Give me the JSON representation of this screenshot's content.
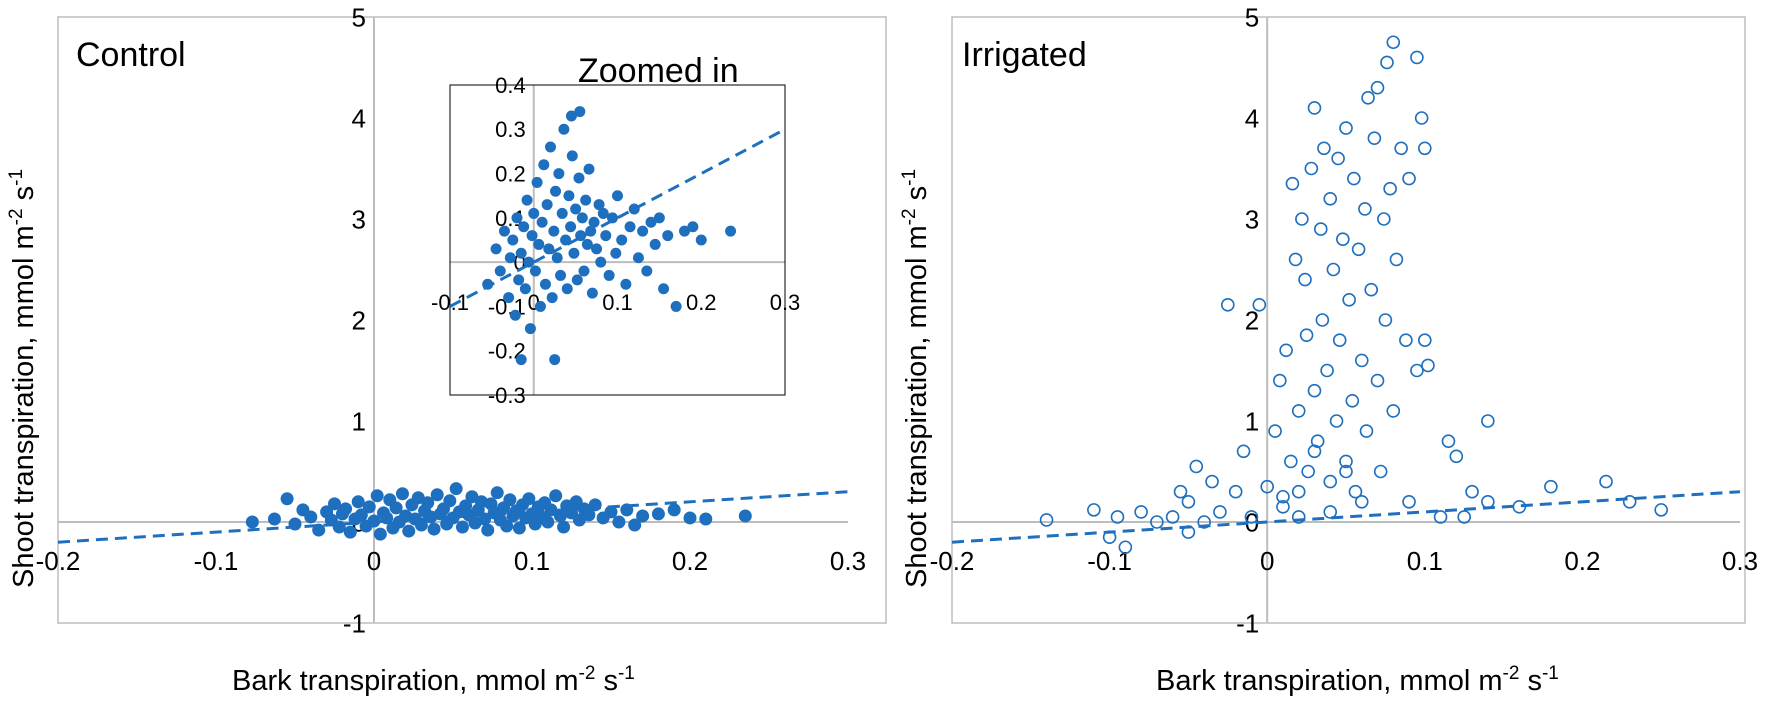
{
  "figure": {
    "panels": [
      "Control",
      "Irrigated"
    ]
  },
  "chart_data": [
    {
      "type": "scatter",
      "panel": "Control",
      "title": "Control",
      "xlabel": "Bark transpiration, mmol m",
      "xlabel_sup1": "-2",
      "xlabel_mid": " s",
      "xlabel_sup2": "-1",
      "ylabel": "Shoot transpiration, mmol m",
      "ylabel_sup1": "-2",
      "ylabel_mid": " s",
      "ylabel_sup2": "-1",
      "xlim": [
        -0.2,
        0.3
      ],
      "ylim": [
        -1,
        5
      ],
      "xticks": [
        -0.2,
        -0.1,
        0,
        0.1,
        0.2,
        0.3
      ],
      "xtick_labels": [
        "-0.2",
        "-0.1",
        "0",
        "0.1",
        "0.2",
        "0.3"
      ],
      "yticks": [
        -1,
        0,
        1,
        2,
        3,
        4,
        5
      ],
      "ytick_labels": [
        "-1",
        "0",
        "1",
        "2",
        "3",
        "4",
        "5"
      ],
      "marker": "filled-circle",
      "color": "#1f6fbf",
      "trendline": {
        "x": [
          -0.2,
          0.3
        ],
        "y": [
          -0.2,
          0.3
        ],
        "style": "dashed"
      },
      "points": [
        [
          -0.077,
          0.0
        ],
        [
          -0.063,
          0.03
        ],
        [
          -0.055,
          0.23
        ],
        [
          -0.05,
          -0.02
        ],
        [
          -0.045,
          0.12
        ],
        [
          -0.04,
          0.05
        ],
        [
          -0.035,
          -0.08
        ],
        [
          -0.03,
          0.1
        ],
        [
          -0.027,
          0.02
        ],
        [
          -0.025,
          0.18
        ],
        [
          -0.022,
          -0.05
        ],
        [
          -0.02,
          0.08
        ],
        [
          -0.018,
          0.13
        ],
        [
          -0.015,
          -0.1
        ],
        [
          -0.012,
          0.03
        ],
        [
          -0.01,
          0.2
        ],
        [
          -0.008,
          0.07
        ],
        [
          -0.005,
          -0.04
        ],
        [
          -0.003,
          0.15
        ],
        [
          0.0,
          0.01
        ],
        [
          0.002,
          0.26
        ],
        [
          0.004,
          -0.12
        ],
        [
          0.006,
          0.09
        ],
        [
          0.008,
          0.04
        ],
        [
          0.01,
          0.22
        ],
        [
          0.012,
          -0.06
        ],
        [
          0.014,
          0.14
        ],
        [
          0.016,
          0.0
        ],
        [
          0.018,
          0.28
        ],
        [
          0.02,
          0.06
        ],
        [
          0.022,
          -0.09
        ],
        [
          0.024,
          0.17
        ],
        [
          0.026,
          0.03
        ],
        [
          0.028,
          0.24
        ],
        [
          0.03,
          -0.03
        ],
        [
          0.032,
          0.11
        ],
        [
          0.034,
          0.19
        ],
        [
          0.036,
          0.05
        ],
        [
          0.038,
          -0.07
        ],
        [
          0.04,
          0.27
        ],
        [
          0.042,
          0.08
        ],
        [
          0.044,
          0.13
        ],
        [
          0.046,
          -0.02
        ],
        [
          0.048,
          0.21
        ],
        [
          0.05,
          0.04
        ],
        [
          0.052,
          0.33
        ],
        [
          0.054,
          0.1
        ],
        [
          0.056,
          -0.05
        ],
        [
          0.058,
          0.16
        ],
        [
          0.06,
          0.07
        ],
        [
          0.062,
          0.25
        ],
        [
          0.064,
          -0.01
        ],
        [
          0.066,
          0.12
        ],
        [
          0.068,
          0.2
        ],
        [
          0.07,
          0.03
        ],
        [
          0.072,
          -0.08
        ],
        [
          0.074,
          0.18
        ],
        [
          0.076,
          0.09
        ],
        [
          0.078,
          0.29
        ],
        [
          0.08,
          0.02
        ],
        [
          0.082,
          0.14
        ],
        [
          0.084,
          -0.04
        ],
        [
          0.086,
          0.22
        ],
        [
          0.088,
          0.06
        ],
        [
          0.09,
          0.11
        ],
        [
          0.092,
          -0.06
        ],
        [
          0.094,
          0.17
        ],
        [
          0.096,
          0.04
        ],
        [
          0.098,
          0.23
        ],
        [
          0.1,
          0.08
        ],
        [
          0.102,
          -0.02
        ],
        [
          0.104,
          0.15
        ],
        [
          0.106,
          0.05
        ],
        [
          0.108,
          0.19
        ],
        [
          0.11,
          0.0
        ],
        [
          0.112,
          0.12
        ],
        [
          0.115,
          0.26
        ],
        [
          0.118,
          0.06
        ],
        [
          0.12,
          -0.05
        ],
        [
          0.122,
          0.16
        ],
        [
          0.125,
          0.09
        ],
        [
          0.128,
          0.2
        ],
        [
          0.13,
          0.02
        ],
        [
          0.133,
          0.13
        ],
        [
          0.136,
          0.07
        ],
        [
          0.14,
          0.17
        ],
        [
          0.145,
          0.04
        ],
        [
          0.15,
          0.1
        ],
        [
          0.155,
          0.0
        ],
        [
          0.16,
          0.12
        ],
        [
          0.165,
          -0.03
        ],
        [
          0.17,
          0.06
        ],
        [
          0.18,
          0.08
        ],
        [
          0.19,
          0.12
        ],
        [
          0.2,
          0.04
        ],
        [
          0.21,
          0.03
        ],
        [
          0.235,
          0.06
        ]
      ]
    },
    {
      "type": "scatter",
      "panel": "Control (inset)",
      "title": "Zoomed in",
      "xlim": [
        -0.1,
        0.3
      ],
      "ylim": [
        -0.3,
        0.4
      ],
      "xticks": [
        -0.1,
        0,
        0.1,
        0.2,
        0.3
      ],
      "xtick_labels": [
        "-0.1",
        "0",
        "0.1",
        "0.2",
        "0.3"
      ],
      "yticks": [
        -0.3,
        -0.2,
        -0.1,
        0,
        0.1,
        0.2,
        0.3,
        0.4
      ],
      "ytick_labels": [
        "-0.3",
        "-0.2",
        "-0.1",
        "0",
        "0.1",
        "0.2",
        "0.3",
        "0.4"
      ],
      "marker": "filled-circle",
      "color": "#1f6fbf",
      "trendline": {
        "x": [
          -0.1,
          0.3
        ],
        "y": [
          -0.1,
          0.3
        ],
        "style": "dashed"
      },
      "points": [
        [
          -0.055,
          -0.05
        ],
        [
          -0.045,
          0.03
        ],
        [
          -0.04,
          -0.02
        ],
        [
          -0.035,
          0.07
        ],
        [
          -0.03,
          -0.08
        ],
        [
          -0.028,
          0.01
        ],
        [
          -0.025,
          0.05
        ],
        [
          -0.022,
          -0.12
        ],
        [
          -0.02,
          0.1
        ],
        [
          -0.018,
          -0.04
        ],
        [
          -0.015,
          0.02
        ],
        [
          -0.012,
          0.08
        ],
        [
          -0.01,
          -0.06
        ],
        [
          -0.008,
          0.14
        ],
        [
          -0.006,
          0.0
        ],
        [
          -0.004,
          -0.15
        ],
        [
          -0.002,
          0.06
        ],
        [
          0.0,
          0.11
        ],
        [
          0.002,
          -0.02
        ],
        [
          0.004,
          0.18
        ],
        [
          0.006,
          0.04
        ],
        [
          0.008,
          -0.1
        ],
        [
          0.01,
          0.09
        ],
        [
          0.012,
          0.22
        ],
        [
          0.014,
          -0.05
        ],
        [
          0.016,
          0.13
        ],
        [
          0.018,
          0.03
        ],
        [
          0.02,
          0.26
        ],
        [
          0.022,
          -0.08
        ],
        [
          0.024,
          0.07
        ],
        [
          0.026,
          0.16
        ],
        [
          0.028,
          0.01
        ],
        [
          0.03,
          0.2
        ],
        [
          0.032,
          -0.03
        ],
        [
          0.034,
          0.11
        ],
        [
          0.036,
          0.3
        ],
        [
          0.038,
          0.05
        ],
        [
          0.04,
          -0.06
        ],
        [
          0.042,
          0.15
        ],
        [
          0.044,
          0.08
        ],
        [
          0.046,
          0.24
        ],
        [
          0.048,
          0.02
        ],
        [
          0.05,
          0.12
        ],
        [
          0.052,
          -0.04
        ],
        [
          0.054,
          0.19
        ],
        [
          0.056,
          0.06
        ],
        [
          0.058,
          0.1
        ],
        [
          0.06,
          -0.02
        ],
        [
          0.062,
          0.14
        ],
        [
          0.064,
          0.04
        ],
        [
          0.066,
          0.21
        ],
        [
          0.068,
          0.07
        ],
        [
          0.07,
          -0.07
        ],
        [
          0.072,
          0.09
        ],
        [
          0.075,
          0.03
        ],
        [
          0.078,
          0.13
        ],
        [
          0.08,
          0.0
        ],
        [
          0.083,
          0.11
        ],
        [
          0.086,
          0.06
        ],
        [
          0.09,
          -0.03
        ],
        [
          0.094,
          0.1
        ],
        [
          0.098,
          0.02
        ],
        [
          0.1,
          0.15
        ],
        [
          0.105,
          0.05
        ],
        [
          0.11,
          -0.05
        ],
        [
          0.115,
          0.08
        ],
        [
          0.12,
          0.12
        ],
        [
          0.125,
          0.01
        ],
        [
          0.13,
          0.07
        ],
        [
          0.135,
          -0.02
        ],
        [
          0.14,
          0.09
        ],
        [
          0.145,
          0.04
        ],
        [
          0.15,
          0.1
        ],
        [
          0.155,
          -0.06
        ],
        [
          0.16,
          0.06
        ],
        [
          0.17,
          -0.1
        ],
        [
          0.18,
          0.07
        ],
        [
          0.19,
          0.08
        ],
        [
          0.2,
          0.05
        ],
        [
          0.235,
          0.07
        ],
        [
          0.045,
          0.33
        ],
        [
          0.025,
          -0.22
        ],
        [
          -0.015,
          -0.22
        ],
        [
          0.055,
          0.34
        ]
      ]
    },
    {
      "type": "scatter",
      "panel": "Irrigated",
      "title": "Irrigated",
      "xlabel": "Bark transpiration, mmol m",
      "xlabel_sup1": "-2",
      "xlabel_mid": " s",
      "xlabel_sup2": "-1",
      "ylabel": "Shoot transpiration, mmol m",
      "ylabel_sup1": "-2",
      "ylabel_mid": " s",
      "ylabel_sup2": "-1",
      "xlim": [
        -0.2,
        0.3
      ],
      "ylim": [
        -1,
        5
      ],
      "xticks": [
        -0.2,
        -0.1,
        0,
        0.1,
        0.2,
        0.3
      ],
      "xtick_labels": [
        "-0.2",
        "-0.1",
        "0",
        "0.1",
        "0.2",
        "0.3"
      ],
      "yticks": [
        -1,
        0,
        1,
        2,
        3,
        4,
        5
      ],
      "ytick_labels": [
        "-1",
        "0",
        "1",
        "2",
        "3",
        "4",
        "5"
      ],
      "marker": "open-circle",
      "color": "#1f6fbf",
      "trendline": {
        "x": [
          -0.2,
          0.3
        ],
        "y": [
          -0.2,
          0.3
        ],
        "style": "dashed"
      },
      "points": [
        [
          -0.14,
          0.02
        ],
        [
          -0.11,
          0.12
        ],
        [
          -0.1,
          -0.15
        ],
        [
          -0.09,
          -0.25
        ],
        [
          -0.095,
          0.05
        ],
        [
          -0.08,
          0.1
        ],
        [
          -0.07,
          0.0
        ],
        [
          -0.06,
          0.05
        ],
        [
          -0.055,
          0.3
        ],
        [
          -0.05,
          -0.1
        ],
        [
          -0.05,
          0.2
        ],
        [
          -0.045,
          0.55
        ],
        [
          -0.04,
          0.0
        ],
        [
          -0.035,
          0.4
        ],
        [
          -0.03,
          0.1
        ],
        [
          -0.025,
          2.15
        ],
        [
          -0.02,
          0.3
        ],
        [
          -0.015,
          0.7
        ],
        [
          -0.01,
          0.05
        ],
        [
          -0.005,
          2.15
        ],
        [
          0.0,
          0.35
        ],
        [
          0.005,
          0.9
        ],
        [
          0.008,
          1.4
        ],
        [
          0.01,
          0.15
        ],
        [
          0.012,
          1.7
        ],
        [
          0.015,
          0.6
        ],
        [
          0.016,
          3.35
        ],
        [
          0.018,
          2.6
        ],
        [
          0.02,
          1.1
        ],
        [
          0.02,
          0.3
        ],
        [
          0.022,
          3.0
        ],
        [
          0.024,
          2.4
        ],
        [
          0.025,
          1.85
        ],
        [
          0.026,
          0.5
        ],
        [
          0.028,
          3.5
        ],
        [
          0.03,
          4.1
        ],
        [
          0.03,
          1.3
        ],
        [
          0.032,
          0.8
        ],
        [
          0.034,
          2.9
        ],
        [
          0.035,
          2.0
        ],
        [
          0.036,
          3.7
        ],
        [
          0.038,
          1.5
        ],
        [
          0.04,
          0.4
        ],
        [
          0.04,
          3.2
        ],
        [
          0.042,
          2.5
        ],
        [
          0.044,
          1.0
        ],
        [
          0.045,
          3.6
        ],
        [
          0.046,
          1.8
        ],
        [
          0.048,
          2.8
        ],
        [
          0.05,
          0.6
        ],
        [
          0.05,
          3.9
        ],
        [
          0.052,
          2.2
        ],
        [
          0.054,
          1.2
        ],
        [
          0.055,
          3.4
        ],
        [
          0.056,
          0.3
        ],
        [
          0.058,
          2.7
        ],
        [
          0.06,
          1.6
        ],
        [
          0.062,
          3.1
        ],
        [
          0.063,
          0.9
        ],
        [
          0.064,
          4.2
        ],
        [
          0.066,
          2.3
        ],
        [
          0.068,
          3.8
        ],
        [
          0.07,
          1.4
        ],
        [
          0.07,
          4.3
        ],
        [
          0.072,
          0.5
        ],
        [
          0.074,
          3.0
        ],
        [
          0.075,
          2.0
        ],
        [
          0.076,
          4.55
        ],
        [
          0.078,
          3.3
        ],
        [
          0.08,
          1.1
        ],
        [
          0.08,
          4.75
        ],
        [
          0.082,
          2.6
        ],
        [
          0.085,
          3.7
        ],
        [
          0.088,
          1.8
        ],
        [
          0.09,
          0.2
        ],
        [
          0.09,
          3.4
        ],
        [
          0.095,
          1.5
        ],
        [
          0.095,
          4.6
        ],
        [
          0.098,
          4.0
        ],
        [
          0.1,
          3.7
        ],
        [
          0.1,
          1.8
        ],
        [
          0.102,
          1.55
        ],
        [
          0.11,
          0.05
        ],
        [
          0.115,
          0.8
        ],
        [
          0.12,
          0.65
        ],
        [
          0.125,
          0.05
        ],
        [
          0.13,
          0.3
        ],
        [
          0.14,
          1.0
        ],
        [
          0.14,
          0.2
        ],
        [
          0.16,
          0.15
        ],
        [
          0.18,
          0.35
        ],
        [
          0.215,
          0.4
        ],
        [
          0.23,
          0.2
        ],
        [
          0.25,
          0.12
        ],
        [
          0.02,
          0.05
        ],
        [
          0.04,
          0.1
        ],
        [
          0.06,
          0.2
        ],
        [
          0.03,
          0.7
        ],
        [
          0.05,
          0.5
        ],
        [
          0.01,
          0.25
        ]
      ]
    }
  ]
}
